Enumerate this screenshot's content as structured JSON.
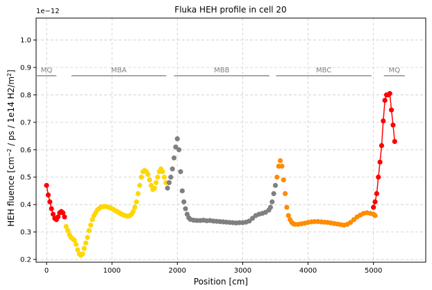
{
  "chart_data": {
    "type": "scatter",
    "title": "Fluka HEH profile in cell 20",
    "xlabel": "Position [cm]",
    "ylabel_main": "HEH fluence [cm",
    "ylabel_sup1": "−2",
    "ylabel_mid": " / ps / 1e14 H2/m",
    "ylabel_sup2": "2",
    "ylabel_end": "]",
    "offset_text": "1e−12",
    "xlim": [
      -160,
      5800
    ],
    "ylim": [
      0.19,
      1.08
    ],
    "xticks": [
      0,
      1000,
      2000,
      3000,
      4000,
      5000
    ],
    "xtick_labels": [
      "0",
      "1000",
      "2000",
      "3000",
      "4000",
      "5000"
    ],
    "yticks": [
      0.2,
      0.3,
      0.4,
      0.5,
      0.6,
      0.7,
      0.8,
      0.9,
      1.0
    ],
    "ytick_labels": [
      "0.2",
      "0.3",
      "0.4",
      "0.5",
      "0.6",
      "0.7",
      "0.8",
      "0.9",
      "1.0"
    ],
    "grid": true,
    "sections": [
      {
        "label": "MQ",
        "x0": -150,
        "x1": 150,
        "y": 0.87,
        "label_y": 0.89
      },
      {
        "label": "MBA",
        "x0": 380,
        "x1": 1830,
        "y": 0.87,
        "label_y": 0.89
      },
      {
        "label": "MBB",
        "x0": 1950,
        "x1": 3410,
        "y": 0.87,
        "label_y": 0.89
      },
      {
        "label": "MBC",
        "x0": 3510,
        "x1": 4970,
        "y": 0.87,
        "label_y": 0.89
      },
      {
        "label": "MQ",
        "x0": 5160,
        "x1": 5480,
        "y": 0.87,
        "label_y": 0.89
      }
    ],
    "series": [
      {
        "color": "#ff0000",
        "line": true,
        "x": [
          0,
          25,
          50,
          75,
          100,
          125,
          150,
          175,
          200,
          225,
          250,
          275
        ],
        "y": [
          0.47,
          0.435,
          0.41,
          0.385,
          0.365,
          0.35,
          0.345,
          0.355,
          0.37,
          0.375,
          0.37,
          0.355
        ]
      },
      {
        "color": "#ffd700",
        "line": false,
        "x": [
          300,
          325,
          350,
          375,
          400,
          425,
          450,
          475,
          500,
          525,
          550,
          575,
          600,
          625,
          650,
          675,
          700,
          725,
          750,
          775,
          800,
          825,
          850,
          875,
          900,
          925,
          950,
          975,
          1000,
          1025,
          1050,
          1075,
          1100,
          1125,
          1150,
          1175,
          1200,
          1225,
          1250,
          1275,
          1300,
          1325,
          1350,
          1375,
          1400,
          1425,
          1450,
          1475,
          1500,
          1525,
          1550,
          1575,
          1600,
          1625,
          1650,
          1675,
          1700,
          1725,
          1750,
          1775,
          1800,
          1825
        ],
        "y": [
          0.32,
          0.305,
          0.29,
          0.28,
          0.275,
          0.27,
          0.255,
          0.235,
          0.22,
          0.215,
          0.22,
          0.24,
          0.26,
          0.28,
          0.305,
          0.325,
          0.345,
          0.36,
          0.37,
          0.38,
          0.385,
          0.39,
          0.392,
          0.393,
          0.393,
          0.392,
          0.39,
          0.388,
          0.385,
          0.382,
          0.378,
          0.375,
          0.372,
          0.368,
          0.365,
          0.362,
          0.36,
          0.358,
          0.358,
          0.36,
          0.365,
          0.375,
          0.39,
          0.41,
          0.44,
          0.47,
          0.5,
          0.52,
          0.525,
          0.52,
          0.51,
          0.49,
          0.47,
          0.455,
          0.46,
          0.48,
          0.5,
          0.52,
          0.53,
          0.52,
          0.5,
          0.48
        ]
      },
      {
        "color": "#808080",
        "line": false,
        "x": [
          1850,
          1875,
          1900,
          1925,
          1950,
          1975,
          2000,
          2025,
          2050,
          2075,
          2100,
          2125,
          2150,
          2175,
          2200,
          2250,
          2300,
          2350,
          2400,
          2450,
          2500,
          2550,
          2600,
          2650,
          2700,
          2750,
          2800,
          2850,
          2900,
          2950,
          3000,
          3050,
          3100,
          3150,
          3200,
          3250,
          3300,
          3350,
          3400,
          3425,
          3450,
          3475,
          3500
        ],
        "y": [
          0.46,
          0.48,
          0.5,
          0.53,
          0.57,
          0.61,
          0.64,
          0.6,
          0.52,
          0.45,
          0.41,
          0.385,
          0.365,
          0.352,
          0.346,
          0.343,
          0.342,
          0.342,
          0.343,
          0.341,
          0.342,
          0.34,
          0.339,
          0.338,
          0.337,
          0.336,
          0.335,
          0.334,
          0.333,
          0.334,
          0.334,
          0.336,
          0.34,
          0.35,
          0.36,
          0.365,
          0.368,
          0.372,
          0.38,
          0.39,
          0.41,
          0.44,
          0.47
        ]
      },
      {
        "color": "#ff8c00",
        "line": false,
        "x": [
          3525,
          3550,
          3575,
          3600,
          3625,
          3650,
          3675,
          3700,
          3725,
          3750,
          3775,
          3800,
          3850,
          3900,
          3950,
          4000,
          4050,
          4100,
          4150,
          4200,
          4250,
          4300,
          4350,
          4400,
          4450,
          4500,
          4550,
          4600,
          4650,
          4700,
          4750,
          4800,
          4850,
          4900,
          4950,
          5000,
          5025
        ],
        "y": [
          0.5,
          0.54,
          0.56,
          0.54,
          0.49,
          0.44,
          0.39,
          0.36,
          0.345,
          0.335,
          0.33,
          0.328,
          0.328,
          0.33,
          0.332,
          0.335,
          0.337,
          0.338,
          0.338,
          0.337,
          0.336,
          0.335,
          0.333,
          0.331,
          0.329,
          0.327,
          0.325,
          0.328,
          0.335,
          0.345,
          0.355,
          0.362,
          0.368,
          0.37,
          0.368,
          0.365,
          0.36
        ]
      },
      {
        "color": "#ff0000",
        "line": true,
        "x": [
          5000,
          5025,
          5050,
          5075,
          5100,
          5125,
          5150,
          5175,
          5200,
          5225,
          5250,
          5275,
          5300,
          5325
        ],
        "y": [
          0.39,
          0.41,
          0.44,
          0.5,
          0.555,
          0.615,
          0.705,
          0.78,
          0.8,
          0.8,
          0.805,
          0.745,
          0.69,
          0.63
        ]
      }
    ]
  }
}
